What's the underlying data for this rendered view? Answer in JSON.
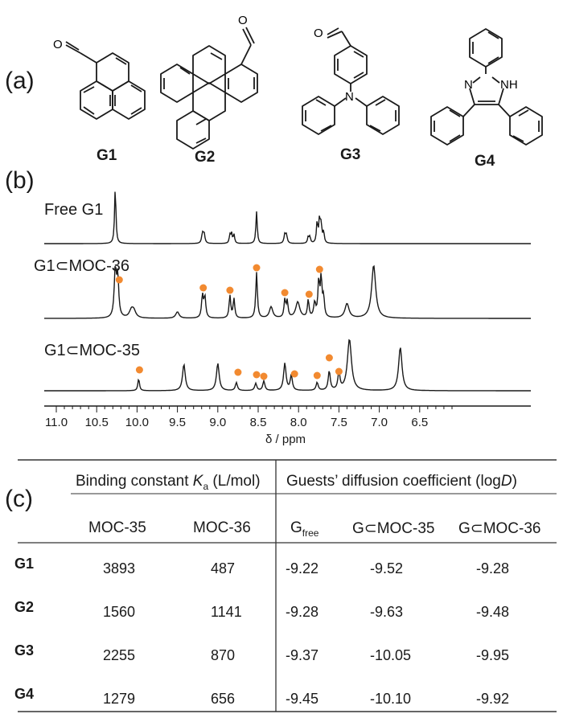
{
  "panel_a": {
    "label": "(a)",
    "molecules": [
      "G1",
      "G2",
      "G3",
      "G4"
    ],
    "nh_label": "NH",
    "n_label": "N"
  },
  "panel_b": {
    "label": "(b)",
    "traces": [
      {
        "name": "Free G1",
        "markers": []
      },
      {
        "name": "G1⊂MOC-36",
        "markers": [
          10.22,
          9.18,
          8.85,
          8.52,
          8.17,
          7.87,
          7.74
        ]
      },
      {
        "name": "G1⊂MOC-35",
        "markers": [
          9.97,
          8.75,
          8.52,
          8.43,
          8.05,
          7.77,
          7.62,
          7.5
        ]
      }
    ],
    "axis": {
      "ticks": [
        "11.0",
        "10.5",
        "10.0",
        "9.5",
        "9.0",
        "8.5",
        "8.0",
        "7.5",
        "7.0",
        "6.5"
      ],
      "label": "δ / ppm"
    },
    "marker_color": "#f28a30"
  },
  "panel_c": {
    "label": "(c)",
    "group1_prefix": "Binding constant ",
    "group1_var": "K",
    "group1_sub": "a",
    "group1_suffix": " (L/mol)",
    "group2_prefix": "Guests’ diffusion coefficient (log",
    "group2_var": "D",
    "group2_suffix": ")",
    "col_moc35": "MOC-35",
    "col_moc36": "MOC-36",
    "col_gfree_main": "G",
    "col_gfree_sub": "free",
    "col_g_moc35": "G⊂MOC-35",
    "col_g_moc36": "G⊂MOC-36",
    "rows": [
      {
        "guest": "G1",
        "ka_moc35": "3893",
        "ka_moc36": "487",
        "logd_free": "-9.22",
        "logd_moc35": "-9.52",
        "logd_moc36": "-9.28"
      },
      {
        "guest": "G2",
        "ka_moc35": "1560",
        "ka_moc36": "1141",
        "logd_free": "-9.28",
        "logd_moc35": "-9.63",
        "logd_moc36": "-9.48"
      },
      {
        "guest": "G3",
        "ka_moc35": "2255",
        "ka_moc36": "870",
        "logd_free": "-9.37",
        "logd_moc35": "-10.05",
        "logd_moc36": "-9.95"
      },
      {
        "guest": "G4",
        "ka_moc35": "1279",
        "ka_moc36": "656",
        "logd_free": "-9.45",
        "logd_moc35": "-10.10",
        "logd_moc36": "-9.92"
      }
    ]
  }
}
